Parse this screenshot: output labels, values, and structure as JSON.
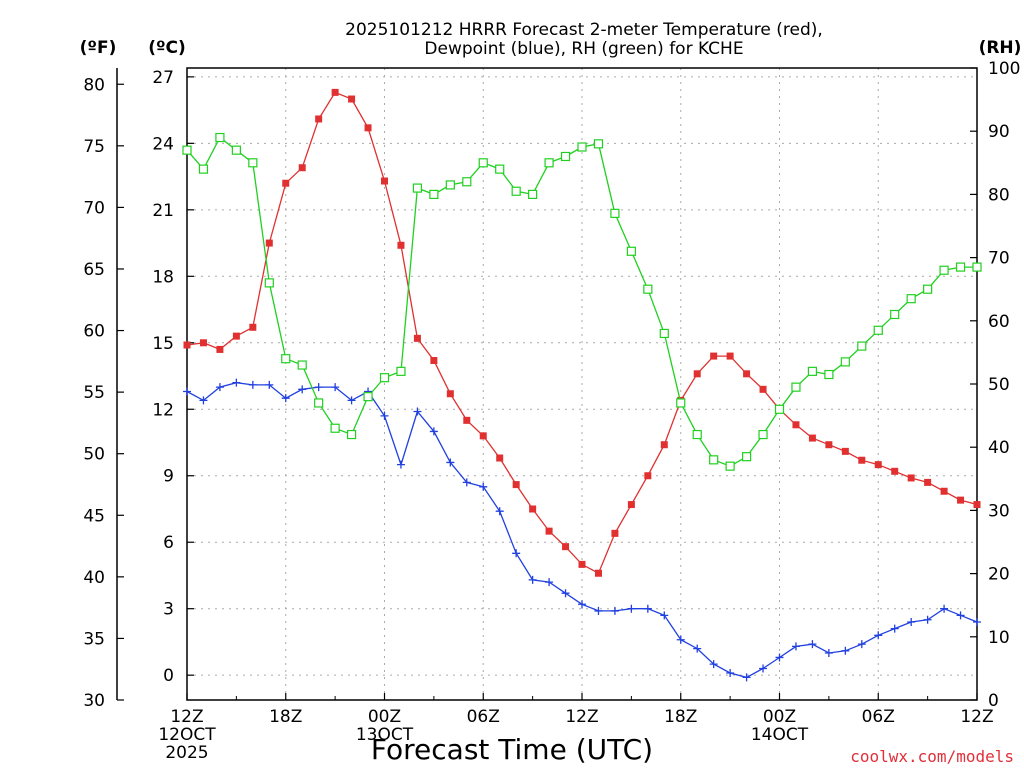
{
  "chart_data": {
    "type": "line",
    "title": [
      "2025101212 HRRR Forecast 2-meter Temperature (red),",
      "Dewpoint (blue), RH (green) for KCHE"
    ],
    "xlabel": "Forecast Time (UTC)",
    "watermark": "coolwx.com/models",
    "units": {
      "f": "(ºF)",
      "c": "(ºC)",
      "rh": "(RH)"
    },
    "x_unit": "forecast hour",
    "xlim": [
      0,
      48
    ],
    "x_ticks": [
      {
        "x": 0,
        "lines": [
          "12Z",
          "12OCT",
          "2025"
        ]
      },
      {
        "x": 6,
        "lines": [
          "18Z"
        ]
      },
      {
        "x": 12,
        "lines": [
          "00Z",
          "13OCT"
        ]
      },
      {
        "x": 18,
        "lines": [
          "06Z"
        ]
      },
      {
        "x": 24,
        "lines": [
          "12Z"
        ]
      },
      {
        "x": 30,
        "lines": [
          "18Z"
        ]
      },
      {
        "x": 36,
        "lines": [
          "00Z",
          "14OCT"
        ]
      },
      {
        "x": 42,
        "lines": [
          "06Z"
        ]
      },
      {
        "x": 48,
        "lines": [
          "12Z"
        ]
      }
    ],
    "y_celsius": {
      "lim": [
        -1.12,
        27.4
      ],
      "ticks": [
        0,
        3,
        6,
        9,
        12,
        15,
        18,
        21,
        24,
        27
      ]
    },
    "y_fahrenheit": {
      "lim": [
        30,
        81.32
      ],
      "ticks": [
        30,
        35,
        40,
        45,
        50,
        55,
        60,
        65,
        70,
        75,
        80
      ]
    },
    "y_rh": {
      "lim": [
        0,
        100
      ],
      "ticks": [
        0,
        10,
        20,
        30,
        40,
        50,
        60,
        70,
        80,
        90,
        100
      ]
    },
    "series": [
      {
        "name": "Temperature",
        "unit": "°C",
        "color": "#e03030",
        "marker": "filled-square",
        "values": [
          14.9,
          15.0,
          14.7,
          15.3,
          15.7,
          19.5,
          22.2,
          22.9,
          25.1,
          26.3,
          26.0,
          24.7,
          22.3,
          19.4,
          15.2,
          14.2,
          12.7,
          11.5,
          10.8,
          9.8,
          8.6,
          7.5,
          6.5,
          5.8,
          5.0,
          4.6,
          6.4,
          7.7,
          9.0,
          10.4,
          12.4,
          13.6,
          14.4,
          14.4,
          13.6,
          12.9,
          12.0,
          11.3,
          10.7,
          10.4,
          10.1,
          9.7,
          9.5,
          9.2,
          8.9,
          8.7,
          8.3,
          7.9,
          7.7
        ]
      },
      {
        "name": "Dewpoint",
        "unit": "°C",
        "color": "#2040e0",
        "marker": "plus",
        "values": [
          12.8,
          12.4,
          13.0,
          13.2,
          13.1,
          13.1,
          12.5,
          12.9,
          13.0,
          13.0,
          12.4,
          12.8,
          11.7,
          9.5,
          11.9,
          11.0,
          9.6,
          8.7,
          8.5,
          7.4,
          5.5,
          4.3,
          4.2,
          3.7,
          3.2,
          2.9,
          2.9,
          3.0,
          3.0,
          2.7,
          1.6,
          1.2,
          0.5,
          0.1,
          -0.1,
          0.3,
          0.8,
          1.3,
          1.4,
          1.0,
          1.1,
          1.4,
          1.8,
          2.1,
          2.4,
          2.5,
          3.0,
          2.7,
          2.4
        ]
      },
      {
        "name": "RH",
        "unit": "%",
        "color": "#20d020",
        "marker": "open-square",
        "values": [
          87.0,
          84.0,
          89.0,
          87.0,
          85.0,
          66.0,
          54.0,
          53.0,
          47.0,
          43.0,
          42.0,
          48.0,
          51.0,
          52.0,
          81.0,
          80.0,
          81.5,
          82.0,
          85.0,
          84.0,
          80.5,
          80.0,
          85.0,
          86.0,
          87.5,
          88.0,
          77.0,
          71.0,
          65.0,
          58.0,
          47.0,
          42.0,
          38.0,
          37.0,
          38.5,
          42.0,
          46.0,
          49.5,
          52.0,
          51.5,
          53.5,
          56.0,
          58.5,
          61.0,
          63.5,
          65.0,
          68.0,
          68.5,
          68.5
        ]
      }
    ],
    "grid": true
  }
}
